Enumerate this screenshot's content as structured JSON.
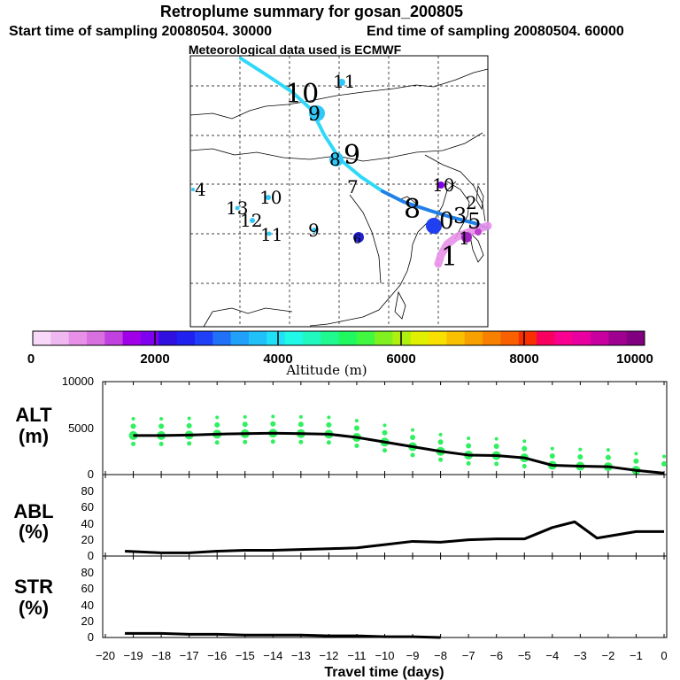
{
  "header": {
    "title": "Retroplume summary for gosan_200805",
    "start_label": "Start time of sampling 20080504. 30000",
    "end_label": "End time of sampling 20080504. 60000",
    "met_label": "Meteorological data used is ECMWF"
  },
  "colorbar": {
    "ticks": [
      "0",
      "2000",
      "4000",
      "6000",
      "8000",
      "10000"
    ],
    "label": "Altitude (m)",
    "colors": [
      "#f8d8f8",
      "#f0b8f0",
      "#e890e8",
      "#d870e0",
      "#c040e0",
      "#a000e8",
      "#8000f0",
      "#3010e0",
      "#2020f0",
      "#2040f8",
      "#2070f8",
      "#20a0f8",
      "#20c0f8",
      "#20e0f8",
      "#20f8e8",
      "#20f8c0",
      "#20f890",
      "#20f860",
      "#40f840",
      "#80f020",
      "#b0f010",
      "#e0f000",
      "#f8e000",
      "#f8c000",
      "#f8a000",
      "#f88000",
      "#f86000",
      "#f83000",
      "#f80060",
      "#f80090",
      "#e800a0",
      "#c800a0",
      "#a00090",
      "#800080"
    ]
  },
  "map": {
    "trajectory_colors": [
      "#30d8f8",
      "#2080e8",
      "#2050f0"
    ],
    "labels": [
      {
        "t": "11",
        "c": "#0a0a0a"
      },
      {
        "t": "10",
        "c": "#0a0a0a"
      },
      {
        "t": "9",
        "c": "#0a0a0a"
      },
      {
        "t": "9",
        "c": "#0a0a0a"
      },
      {
        "t": "8",
        "c": "#0a0a0a"
      },
      {
        "t": "7",
        "c": "#0a0a0a"
      },
      {
        "t": "10",
        "c": "#0a0a0a"
      },
      {
        "t": "8",
        "c": "#0a0a0a"
      },
      {
        "t": "0",
        "c": "#0a0a0a"
      },
      {
        "t": "3",
        "c": "#0a0a0a"
      },
      {
        "t": "2",
        "c": "#0a0a0a"
      },
      {
        "t": "5",
        "c": "#0a0a0a"
      },
      {
        "t": "1",
        "c": "#0a0a0a"
      },
      {
        "t": "1",
        "c": "#0a0a0a"
      },
      {
        "t": "4",
        "c": "#0a0a0a"
      },
      {
        "t": "13",
        "c": "#0a0a0a"
      },
      {
        "t": "10",
        "c": "#0a0a0a"
      },
      {
        "t": "12",
        "c": "#0a0a0a"
      },
      {
        "t": "11",
        "c": "#0a0a0a"
      },
      {
        "t": "9",
        "c": "#0a0a0a"
      },
      {
        "t": "6",
        "c": "#0a0a0a"
      }
    ]
  },
  "chart_data": [
    {
      "type": "line",
      "title": "ALT",
      "ylabel": "ALT (m)",
      "ylabel_top": "ALT",
      "ylabel_bottom": "(m)",
      "ylim": [
        0,
        10000
      ],
      "yticks": [
        "0",
        "5000",
        "10000"
      ],
      "line_color": "#000000",
      "marker_color": "#30f060",
      "x": [
        -19,
        -18,
        -17,
        -16,
        -15,
        -14,
        -13,
        -12,
        -11,
        -10,
        -9,
        -8,
        -7,
        -6,
        -5,
        -4,
        -3,
        -2,
        -1,
        0
      ],
      "values": [
        4200,
        4200,
        4250,
        4350,
        4400,
        4450,
        4400,
        4350,
        4000,
        3500,
        3000,
        2500,
        2100,
        2050,
        1800,
        1000,
        900,
        850,
        450,
        150
      ]
    },
    {
      "type": "line",
      "title": "ABL",
      "ylabel": "ABL (%)",
      "ylabel_top": "ABL",
      "ylabel_bottom": "(%)",
      "ylim": [
        0,
        100
      ],
      "yticks": [
        "0",
        "20",
        "40",
        "60",
        "80"
      ],
      "line_color": "#000000",
      "x": [
        -19.3,
        -18,
        -17,
        -16,
        -15,
        -14,
        -13,
        -12,
        -11,
        -10,
        -9,
        -8,
        -7,
        -6,
        -5,
        -4,
        -3.2,
        -2.4,
        -1,
        0
      ],
      "values": [
        6,
        4,
        4,
        6,
        7,
        7,
        8,
        9,
        10,
        14,
        18,
        17,
        20,
        21,
        21,
        35,
        42,
        22,
        30,
        30
      ]
    },
    {
      "type": "line",
      "title": "STR",
      "ylabel": "STR (%)",
      "ylabel_top": "STR",
      "ylabel_bottom": "(%)",
      "ylim": [
        0,
        100
      ],
      "yticks": [
        "0",
        "20",
        "40",
        "60",
        "80"
      ],
      "line_color": "#000000",
      "x": [
        -19.3,
        -18,
        -17,
        -16,
        -15,
        -14,
        -13,
        -12,
        -11,
        -10,
        -9,
        -8
      ],
      "values": [
        5,
        5,
        4,
        4,
        3,
        3,
        3,
        2,
        2,
        1,
        1,
        0
      ]
    }
  ],
  "xaxis": {
    "label": "Travel time (days)",
    "min": -20,
    "max": 0,
    "ticks": [
      "−20",
      "−19",
      "−18",
      "−17",
      "−16",
      "−15",
      "−14",
      "−13",
      "−12",
      "−11",
      "−10",
      "−9",
      "−8",
      "−7",
      "−6",
      "−5",
      "−4",
      "−3",
      "−2",
      "−1",
      "0"
    ]
  }
}
